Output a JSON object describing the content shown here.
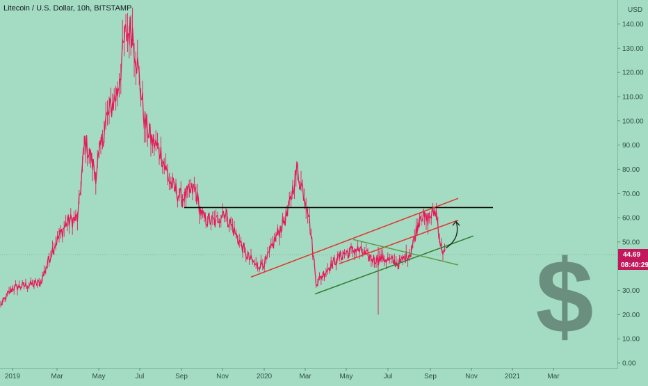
{
  "header": {
    "symbol_title": "Litecoin / U.S. Dollar, 10h, BITSTAMP",
    "currency": "USD"
  },
  "price_tag": {
    "last_price": "44.69",
    "countdown": "08:40:29",
    "color": "#c2185b"
  },
  "colors": {
    "background": "#a3dcc2",
    "candle": "#e6195a",
    "resistance_line": "#000000",
    "channel_lines": "#e0342a",
    "support_line": "#2e7d32",
    "triangle_line": "#5a9a48",
    "arrow": "#1a2a22",
    "dollar_icon": "#6b8f7f"
  },
  "decoration": {
    "icon": "dollar-sign-icon"
  },
  "chart_data": {
    "type": "line",
    "title": "Litecoin / U.S. Dollar, 10h, BITSTAMP",
    "ylabel": "USD",
    "ylim": [
      0,
      146
    ],
    "y_ticks": [
      "0.00",
      "10.00",
      "20.00",
      "30.00",
      "40.00",
      "50.00",
      "60.00",
      "70.00",
      "80.00",
      "90.00",
      "100.00",
      "110.00",
      "120.00",
      "130.00",
      "140.00"
    ],
    "x_ticks": [
      "2019",
      "Mar",
      "May",
      "Jul",
      "Sep",
      "Nov",
      "2020",
      "Mar",
      "May",
      "Jul",
      "Sep",
      "Nov",
      "2021",
      "Mar"
    ],
    "grid": false,
    "series": [
      {
        "x": [
          "2018-12-15",
          "2019-01-01",
          "2019-01-20",
          "2019-02-10",
          "2019-03-01",
          "2019-03-20",
          "2019-04-05",
          "2019-04-15",
          "2019-05-01",
          "2019-05-15",
          "2019-06-01",
          "2019-06-12",
          "2019-06-22",
          "2019-07-01",
          "2019-07-10",
          "2019-07-20",
          "2019-08-01",
          "2019-08-15",
          "2019-09-01",
          "2019-09-20",
          "2019-10-01",
          "2019-10-20",
          "2019-11-01",
          "2019-11-20",
          "2019-12-05",
          "2019-12-18",
          "2020-01-01",
          "2020-01-15",
          "2020-02-01",
          "2020-02-14",
          "2020-03-01",
          "2020-03-13",
          "2020-04-01",
          "2020-04-20",
          "2020-05-10",
          "2020-06-01",
          "2020-06-20",
          "2020-07-10",
          "2020-07-27",
          "2020-08-10",
          "2020-08-18",
          "2020-09-01",
          "2020-09-08",
          "2020-09-15"
        ],
        "values": [
          24,
          31,
          32,
          33,
          48,
          58,
          60,
          92,
          78,
          100,
          112,
          135,
          138,
          120,
          100,
          92,
          88,
          75,
          68,
          72,
          60,
          58,
          63,
          52,
          44,
          40,
          42,
          52,
          62,
          80,
          64,
          33,
          40,
          45,
          47,
          43,
          43,
          41,
          46,
          62,
          59,
          63,
          48,
          44.69
        ]
      }
    ],
    "annotations": [
      {
        "kind": "horizontal",
        "label": "",
        "points": [
          [
            "2019-09-05",
            64.2
          ],
          [
            "2020-11-22",
            64.2
          ]
        ]
      },
      {
        "kind": "trend",
        "label": "",
        "points": [
          [
            "2019-12-10",
            35.5
          ],
          [
            "2020-10-03",
            68
          ]
        ]
      },
      {
        "kind": "trend",
        "label": "",
        "points": [
          [
            "2020-04-15",
            41
          ],
          [
            "2020-10-03",
            59
          ]
        ]
      },
      {
        "kind": "trend",
        "label": "",
        "points": [
          [
            "2020-03-11",
            28.5
          ],
          [
            "2020-10-25",
            52.5
          ]
        ]
      },
      {
        "kind": "trend",
        "label": "",
        "points": [
          [
            "2020-05-05",
            51
          ],
          [
            "2020-10-03",
            40.5
          ]
        ]
      },
      {
        "kind": "projection",
        "label": "",
        "points": [
          [
            "2020-09-20",
            48
          ],
          [
            "2020-09-30",
            58.5
          ]
        ]
      }
    ],
    "outliers": [
      {
        "x": "2020-06-10",
        "high": 48,
        "low": 20
      }
    ],
    "last_value": 44.69
  }
}
